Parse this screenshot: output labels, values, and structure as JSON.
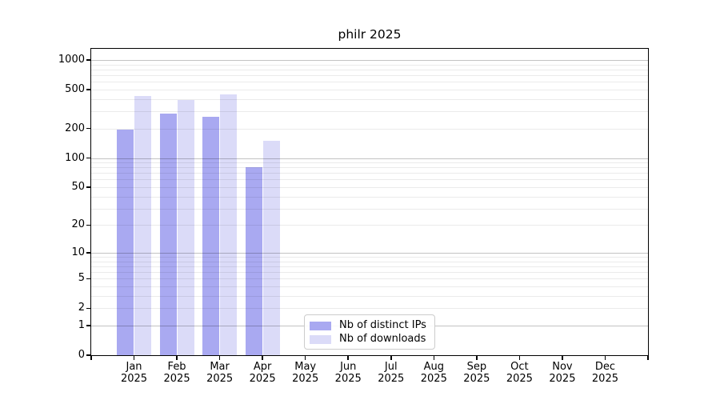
{
  "chart_data": {
    "type": "bar",
    "title": "philr 2025",
    "categories": [
      "Jan 2025",
      "Feb 2025",
      "Mar 2025",
      "Apr 2025",
      "May 2025",
      "Jun 2025",
      "Jul 2025",
      "Aug 2025",
      "Sep 2025",
      "Oct 2025",
      "Nov 2025",
      "Dec 2025"
    ],
    "series": [
      {
        "name": "Nb of distinct IPs",
        "color": "#a9a9f1",
        "values": [
          195,
          285,
          265,
          80,
          null,
          null,
          null,
          null,
          null,
          null,
          null,
          null
        ]
      },
      {
        "name": "Nb of downloads",
        "color": "#dbdbf8",
        "values": [
          430,
          390,
          450,
          150,
          null,
          null,
          null,
          null,
          null,
          null,
          null,
          null
        ]
      }
    ],
    "yscale": "log1p",
    "yticks": [
      0,
      1,
      2,
      5,
      10,
      20,
      50,
      100,
      200,
      500,
      1000
    ],
    "ylim": [
      0,
      1300
    ],
    "xlabel": "",
    "ylabel": "",
    "grid": "both",
    "legend_position": "lower-center-inside"
  },
  "colors": {
    "bar_distinct_ips": "#a9a9f1",
    "bar_downloads": "#dbdbf8",
    "grid_major": "#c3c3c3",
    "grid_minor": "#ebebeb",
    "axis": "#000000",
    "legend_border": "#cccccc",
    "background": "#ffffff"
  }
}
